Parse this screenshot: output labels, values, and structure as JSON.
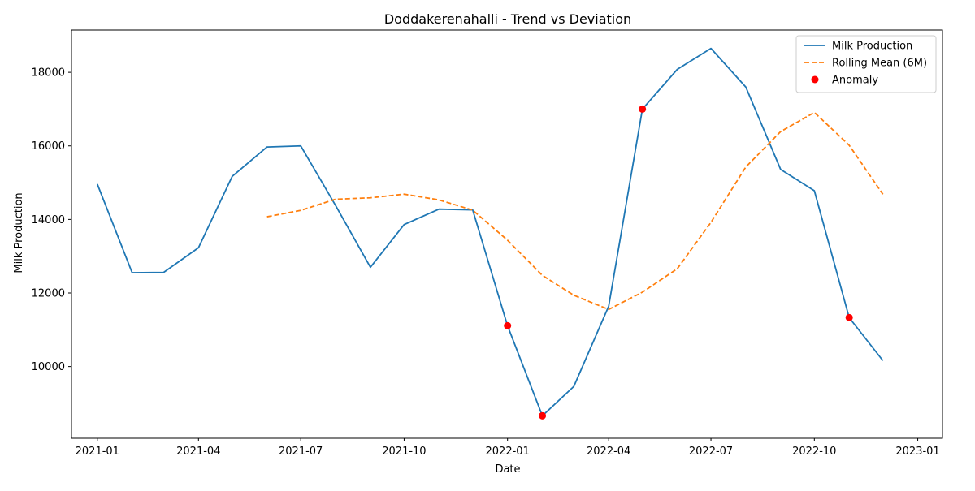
{
  "chart_data": {
    "type": "line",
    "title": "Doddakerenahalli - Trend vs Deviation",
    "xlabel": "Date",
    "ylabel": "Milk Production",
    "x": [
      "2021-01",
      "2021-02",
      "2021-03",
      "2021-04",
      "2021-05",
      "2021-06",
      "2021-07",
      "2021-08",
      "2021-09",
      "2021-10",
      "2021-11",
      "2021-12",
      "2022-01",
      "2022-02",
      "2022-03",
      "2022-04",
      "2022-05",
      "2022-06",
      "2022-07",
      "2022-08",
      "2022-09",
      "2022-10",
      "2022-11",
      "2022-12"
    ],
    "x_ticks": [
      "2021-01",
      "2021-04",
      "2021-07",
      "2021-10",
      "2022-01",
      "2022-04",
      "2022-07",
      "2022-10",
      "2023-01"
    ],
    "xlim": [
      "2020-12-09",
      "2023-01-23"
    ],
    "y_ticks": [
      10000,
      12000,
      14000,
      16000,
      18000
    ],
    "ylim": [
      8050,
      19150
    ],
    "series": [
      {
        "name": "Milk Production",
        "kind": "line",
        "style": "solid",
        "color": "#1f77b4",
        "values": [
          14960,
          12550,
          12560,
          13230,
          15170,
          15970,
          16000,
          14380,
          12700,
          13860,
          14280,
          14260,
          11110,
          8660,
          9460,
          11640,
          17000,
          18080,
          18650,
          17600,
          15360,
          14780,
          11330,
          10160
        ]
      },
      {
        "name": "Rolling Mean (6M)",
        "kind": "line",
        "style": "dashed",
        "color": "#ff7f0e",
        "values": [
          null,
          null,
          null,
          null,
          null,
          14073,
          14247,
          14550,
          14588,
          14687,
          14532,
          14253,
          13435,
          12478,
          11938,
          11552,
          12022,
          12658,
          13920,
          15425,
          16388,
          16910,
          16017,
          14683
        ]
      },
      {
        "name": "Anomaly",
        "kind": "scatter",
        "color": "#ff0000",
        "points": [
          {
            "x": "2022-01",
            "y": 11110
          },
          {
            "x": "2022-02",
            "y": 8660
          },
          {
            "x": "2022-05",
            "y": 17000
          },
          {
            "x": "2022-11",
            "y": 11330
          }
        ]
      }
    ],
    "legend": [
      "Milk Production",
      "Rolling Mean (6M)",
      "Anomaly"
    ],
    "legend_position": "upper right",
    "grid": false
  }
}
